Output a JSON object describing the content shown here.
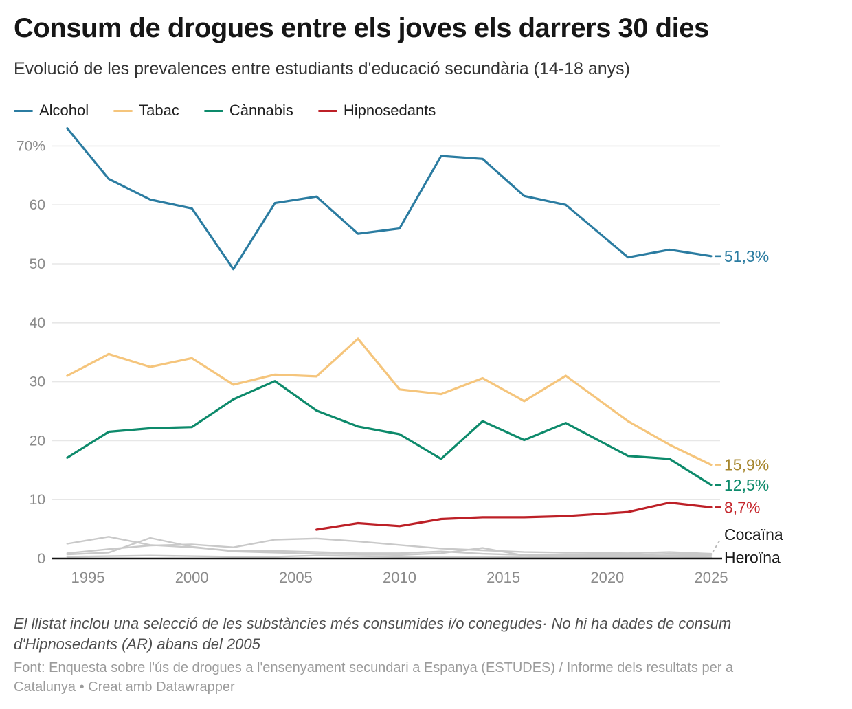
{
  "header": {
    "title": "Consum de drogues entre els joves els darrers 30 dies",
    "subtitle": "Evolució de les prevalences entre estudiants d'educació secundària (14-18 anys)"
  },
  "legend": [
    {
      "label": "Alcohol",
      "color": "#2b7ca1"
    },
    {
      "label": "Tabac",
      "color": "#f5c57c"
    },
    {
      "label": "Cànnabis",
      "color": "#0d8a6b"
    },
    {
      "label": "Hipnosedants",
      "color": "#bd2027"
    }
  ],
  "chart_data": {
    "type": "line",
    "x": [
      1994,
      1996,
      1998,
      2000,
      2002,
      2004,
      2006,
      2008,
      2010,
      2012,
      2014,
      2016,
      2018,
      2021,
      2023,
      2025
    ],
    "x_ticks": [
      "1995",
      "2000",
      "2005",
      "2010",
      "2015",
      "2020",
      "2025"
    ],
    "x_tick_years": [
      1995,
      2000,
      2005,
      2010,
      2015,
      2020,
      2025
    ],
    "y_ticks": [
      {
        "v": 70,
        "label": "70%"
      },
      {
        "v": 60,
        "label": "60"
      },
      {
        "v": 50,
        "label": "50"
      },
      {
        "v": 40,
        "label": "40"
      },
      {
        "v": 30,
        "label": "30"
      },
      {
        "v": 20,
        "label": "20"
      },
      {
        "v": 10,
        "label": "10"
      },
      {
        "v": 0,
        "label": "0"
      }
    ],
    "ylim": [
      0,
      74
    ],
    "grid": true,
    "legend_position": "top-left",
    "series": [
      {
        "id": "substancia-a",
        "name": "",
        "muted": true,
        "color": "#c9c9c9",
        "end_label": "",
        "values": [
          2.5,
          3.7,
          2.3,
          1.9,
          1.3,
          1.3,
          1.1,
          0.9,
          0.9,
          1.2,
          0.8,
          0.6,
          0.7,
          0.6,
          0.8,
          0.7
        ]
      },
      {
        "id": "substancia-b",
        "name": "",
        "muted": true,
        "color": "#c9c9c9",
        "end_label": "",
        "values": [
          0.7,
          1.0,
          3.5,
          2.0,
          1.2,
          1.0,
          0.8,
          0.7,
          0.6,
          0.9,
          1.8,
          0.5,
          0.5,
          0.4,
          0.5,
          0.6
        ]
      },
      {
        "id": "cocaina",
        "name": "Cocaïna",
        "muted": true,
        "color": "#c9c9c9",
        "end_label": "Cocaïna",
        "label_color": "#1a1a1a",
        "label_dy": -28,
        "leader": "dashed",
        "values": [
          0.9,
          1.6,
          2.2,
          2.4,
          1.9,
          3.2,
          3.4,
          2.9,
          2.3,
          1.7,
          1.4,
          1.1,
          1.0,
          0.9,
          1.1,
          0.8
        ]
      },
      {
        "id": "heroina",
        "name": "Heroïna",
        "muted": true,
        "color": "#c9c9c9",
        "end_label": "Heroïna",
        "label_color": "#1a1a1a",
        "label_dy": 0,
        "leader": "axis",
        "values": [
          0.3,
          0.4,
          0.5,
          0.4,
          0.3,
          0.3,
          0.5,
          0.4,
          0.3,
          0.3,
          0.3,
          0.2,
          0.3,
          0.2,
          0.3,
          0.2
        ]
      },
      {
        "id": "alcohol",
        "name": "Alcohol",
        "color": "#2b7ca1",
        "end_label": "51,3%",
        "label_color": "#2b7ca1",
        "leader": "dash",
        "values": [
          73.0,
          64.4,
          60.9,
          59.4,
          49.1,
          60.3,
          61.4,
          55.1,
          56.0,
          68.3,
          67.8,
          61.5,
          60.0,
          51.1,
          52.4,
          51.3
        ]
      },
      {
        "id": "tabac",
        "name": "Tabac",
        "color": "#f5c57c",
        "end_label": "15,9%",
        "label_color": "#a6862d",
        "leader": "dash",
        "values": [
          31.0,
          34.7,
          32.5,
          34.0,
          29.5,
          31.2,
          30.9,
          37.3,
          28.7,
          27.9,
          30.6,
          26.7,
          31.0,
          23.3,
          19.3,
          15.9
        ]
      },
      {
        "id": "cannabis",
        "name": "Cànnabis",
        "color": "#0d8a6b",
        "end_label": "12,5%",
        "label_color": "#0d8a6b",
        "leader": "dash",
        "values": [
          17.1,
          21.5,
          22.1,
          22.3,
          27.0,
          30.1,
          25.1,
          22.4,
          21.1,
          16.9,
          23.3,
          20.1,
          23.0,
          17.4,
          16.9,
          12.5
        ]
      },
      {
        "id": "hipnosedants",
        "name": "Hipnosedants",
        "color": "#bd2027",
        "end_label": "8,7%",
        "label_color": "#c5272d",
        "leader": "dash",
        "values": [
          null,
          null,
          null,
          null,
          null,
          null,
          4.9,
          6.0,
          5.5,
          6.7,
          7.0,
          7.0,
          7.2,
          7.9,
          9.5,
          8.7
        ]
      }
    ]
  },
  "footer": {
    "note": "El llistat inclou una selecció de les substàncies més consumides i/o conegudes· No hi ha dades de consum d'Hipnosedants (AR) abans del 2005",
    "source": "Font: Enquesta sobre l'ús de drogues a l'ensenyament secundari a Espanya (ESTUDES) / Informe dels resultats per a Catalunya • Creat amb Datawrapper"
  }
}
